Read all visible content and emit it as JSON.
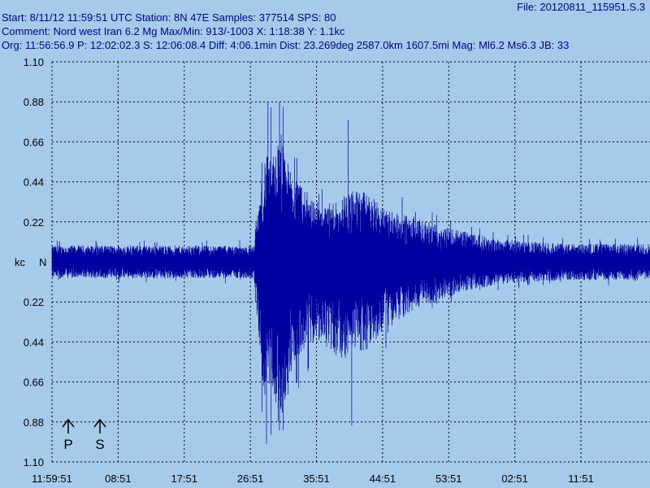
{
  "header": {
    "file": "File: 20120811_115951.S.3",
    "line1": "Start: 8/11/12 11:59:51 UTC Station:  8N 47E Samples: 377514  SPS: 80",
    "line2": "Comment: Nord west Iran 6.2 Mg  Max/Min: 913/-1003 X: 1:18:38 Y: 1.1kc",
    "line3": "Org: 11:56:56.9 P: 12:02:02.3 S: 12:06:08.4 Diff: 4:06.1min Dist: 23.269deg 2587.0km 1607.5mi  Mag: Ml6.2 Ms6.3 JB: 33"
  },
  "colors": {
    "background": "#a6cbea",
    "trace": "#0000a0",
    "grid": "#000000"
  },
  "chart_data": {
    "type": "line",
    "title": "",
    "xlabel": "",
    "ylabel": "kc",
    "zero_label": "N",
    "grid": true,
    "ylim": [
      -1.1,
      1.1
    ],
    "y_ticks": [
      {
        "value": 1.1,
        "label": "1.10"
      },
      {
        "value": 0.88,
        "label": "0.88"
      },
      {
        "value": 0.66,
        "label": "0.66"
      },
      {
        "value": 0.44,
        "label": "0.44"
      },
      {
        "value": 0.22,
        "label": "0.22"
      },
      {
        "value": -0.22,
        "label": "0.22"
      },
      {
        "value": -0.44,
        "label": "0.44"
      },
      {
        "value": -0.66,
        "label": "0.66"
      },
      {
        "value": -0.88,
        "label": "0.88"
      },
      {
        "value": -1.1,
        "label": "1.10"
      }
    ],
    "x_ticks": [
      "11:59:51",
      "08:51",
      "17:51",
      "26:51",
      "35:51",
      "44:51",
      "53:51",
      "02:51",
      "11:51"
    ],
    "markers": [
      {
        "label": "P",
        "time": "12:02:02.3"
      },
      {
        "label": "S",
        "time": "12:06:08.4"
      }
    ],
    "envelope": {
      "t_minutes": [
        0,
        27.5,
        28.5,
        29,
        30,
        31,
        33,
        35,
        37,
        39,
        41,
        43,
        45,
        48,
        51,
        55,
        60,
        65,
        70,
        75
      ],
      "positive": [
        0.09,
        0.09,
        0.45,
        0.6,
        0.55,
        0.7,
        0.45,
        0.38,
        0.3,
        0.36,
        0.4,
        0.38,
        0.3,
        0.26,
        0.22,
        0.18,
        0.13,
        0.11,
        0.1,
        0.1
      ],
      "negative": [
        -0.09,
        -0.09,
        -0.6,
        -0.75,
        -0.68,
        -0.9,
        -0.55,
        -0.45,
        -0.42,
        -0.55,
        -0.5,
        -0.48,
        -0.38,
        -0.3,
        -0.24,
        -0.18,
        -0.13,
        -0.11,
        -0.1,
        -0.1
      ],
      "peak_max": 0.88,
      "peak_min": -1.0
    }
  }
}
